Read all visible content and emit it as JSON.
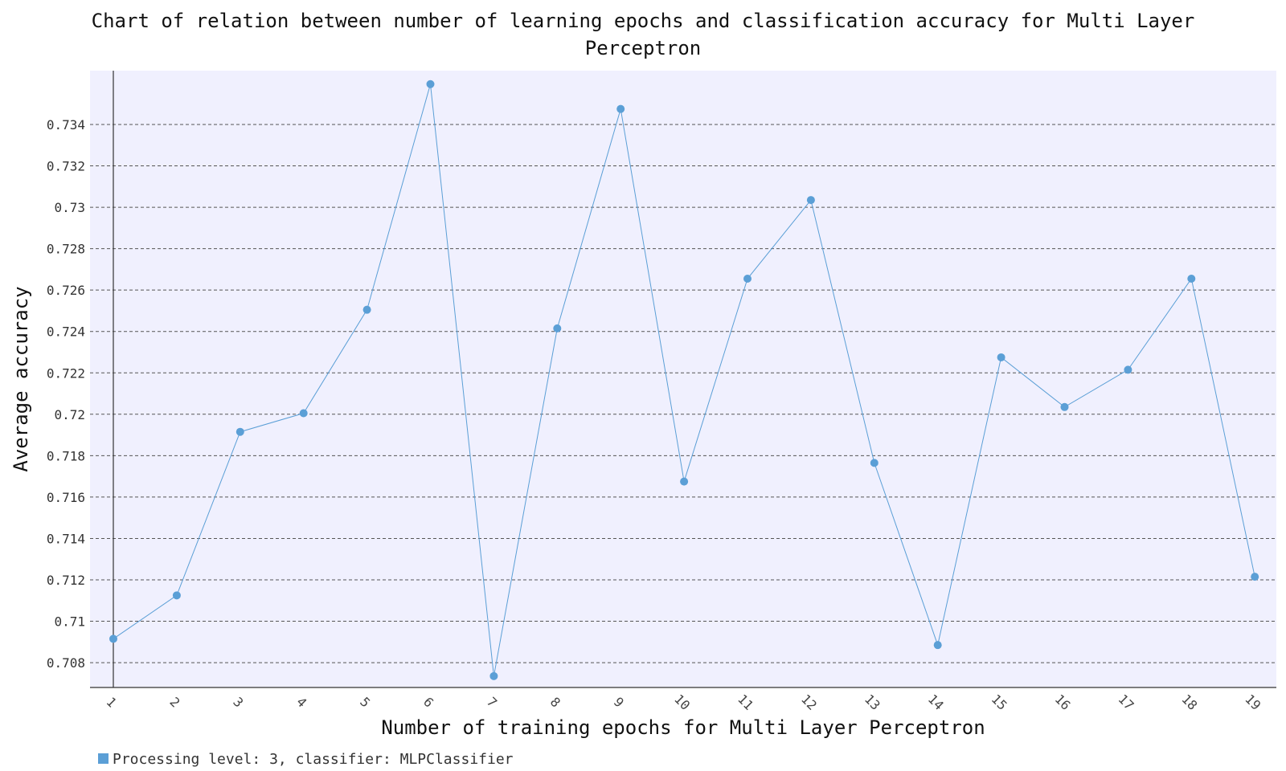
{
  "chart_data": {
    "type": "line",
    "title_lines": [
      "Chart of relation between number of learning epochs and classification accuracy for Multi Layer",
      "Perceptron"
    ],
    "xlabel": "Number of training epochs for Multi Layer Perceptron",
    "ylabel": "Average accuracy",
    "categories": [
      "1",
      "2",
      "3",
      "4",
      "5",
      "6",
      "7",
      "8",
      "9",
      "10",
      "11",
      "12",
      "13",
      "14",
      "15",
      "16",
      "17",
      "18",
      "19"
    ],
    "series": [
      {
        "name": "Processing level: 3, classifier: MLPClassifier",
        "values": [
          0.70915,
          0.71125,
          0.71915,
          0.72005,
          0.72505,
          0.73595,
          0.70735,
          0.72415,
          0.73475,
          0.71675,
          0.72655,
          0.73035,
          0.71765,
          0.70885,
          0.72275,
          0.72035,
          0.72215,
          0.72655,
          0.71215
        ]
      }
    ],
    "yticks": [
      "0.708",
      "0.71",
      "0.712",
      "0.714",
      "0.716",
      "0.718",
      "0.72",
      "0.722",
      "0.724",
      "0.726",
      "0.728",
      "0.73",
      "0.732",
      "0.734"
    ],
    "ylim": [
      0.7068,
      0.7366
    ],
    "grid": true,
    "legend_position": "bottom-left",
    "colors": {
      "series": "#5b9fd6",
      "plot_background": "#f0f0fe",
      "grid": "#555555",
      "axis": "#333333"
    }
  }
}
